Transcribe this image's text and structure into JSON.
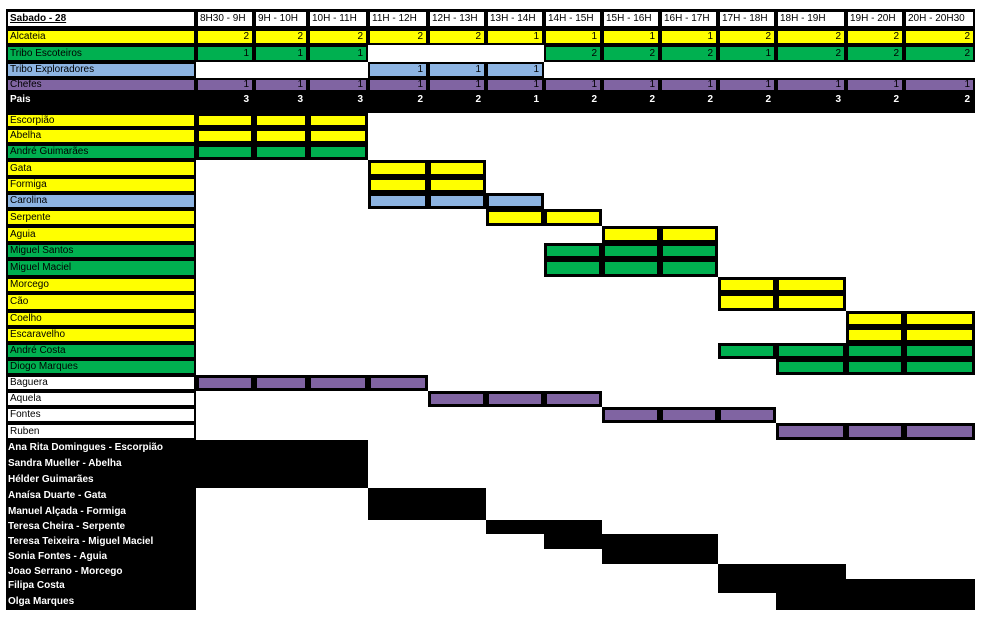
{
  "colors": {
    "yellow": "#ffff00",
    "green": "#00b050",
    "blue": "#8db4e2",
    "purple": "#8064a2",
    "black": "#000000",
    "white": "#ffffff"
  },
  "sheet_title": "Sabado - 28",
  "time_slots": [
    "8H30 - 9H",
    "9H - 10H",
    "10H - 11H",
    "11H - 12H",
    "12H - 13H",
    "13H - 14H",
    "14H - 15H",
    "15H - 16H",
    "16H - 17H",
    "17H - 18H",
    "18H - 19H",
    "19H - 20H",
    "20H - 20H30"
  ],
  "summary_rows": [
    {
      "label": "Alcateia",
      "color": "yellow",
      "values": [
        "2",
        "2",
        "2",
        "2",
        "2",
        "1",
        "1",
        "1",
        "1",
        "2",
        "2",
        "2",
        "2"
      ]
    },
    {
      "label": "Tribo Escoteiros",
      "color": "green",
      "values": [
        "1",
        "1",
        "1",
        "",
        "",
        "",
        "2",
        "2",
        "2",
        "1",
        "2",
        "2",
        "2"
      ]
    },
    {
      "label": "Tribo Exploradores",
      "color": "blue",
      "values": [
        "",
        "",
        "",
        "1",
        "1",
        "1",
        "",
        "",
        "",
        "",
        "",
        "",
        ""
      ]
    },
    {
      "label": "Chefes",
      "color": "purple",
      "values": [
        "1",
        "1",
        "1",
        "1",
        "1",
        "1",
        "1",
        "1",
        "1",
        "1",
        "1",
        "1",
        "1"
      ]
    },
    {
      "label": "Pais",
      "color": "black",
      "values": [
        "3",
        "3",
        "3",
        "2",
        "2",
        "1",
        "2",
        "2",
        "2",
        "2",
        "3",
        "2",
        "2"
      ]
    }
  ],
  "assignments": [
    {
      "label": "Escorpião",
      "color": "yellow",
      "slots": [
        0,
        1,
        2
      ]
    },
    {
      "label": "Abelha",
      "color": "yellow",
      "slots": [
        0,
        1,
        2
      ]
    },
    {
      "label": "André Guimarães",
      "color": "green",
      "slots": [
        0,
        1,
        2
      ]
    },
    {
      "label": "Gata",
      "color": "yellow",
      "slots": [
        3,
        4
      ]
    },
    {
      "label": "Formiga",
      "color": "yellow",
      "slots": [
        3,
        4
      ]
    },
    {
      "label": "Carolina",
      "color": "blue",
      "slots": [
        3,
        4,
        5
      ]
    },
    {
      "label": "Serpente",
      "color": "yellow",
      "slots": [
        5,
        6
      ]
    },
    {
      "label": "Aguia",
      "color": "yellow",
      "slots": [
        7,
        8
      ]
    },
    {
      "label": "Miguel Santos",
      "color": "green",
      "slots": [
        6,
        7,
        8
      ]
    },
    {
      "label": "Miguel Maciel",
      "color": "green",
      "slots": [
        6,
        7,
        8
      ]
    },
    {
      "label": "Morcego",
      "color": "yellow",
      "slots": [
        9,
        10
      ]
    },
    {
      "label": "Cão",
      "color": "yellow",
      "slots": [
        9,
        10
      ]
    },
    {
      "label": "Coelho",
      "color": "yellow",
      "slots": [
        11,
        12
      ]
    },
    {
      "label": "Escaravelho",
      "color": "yellow",
      "slots": [
        11,
        12
      ]
    },
    {
      "label": "André Costa",
      "color": "green",
      "slots": [
        9,
        10,
        11,
        12
      ]
    },
    {
      "label": "Diogo Marques",
      "color": "green",
      "slots": [
        10,
        11,
        12
      ]
    },
    {
      "label": "Baguera",
      "color": "purple",
      "slots": [
        0,
        1,
        2,
        3
      ]
    },
    {
      "label": "Aquela",
      "color": "purple",
      "slots": [
        4,
        5,
        6
      ]
    },
    {
      "label": "Fontes",
      "color": "purple",
      "slots": [
        7,
        8,
        9
      ]
    },
    {
      "label": "Ruben",
      "color": "purple",
      "slots": [
        10,
        11,
        12
      ]
    }
  ],
  "parents": [
    {
      "label": "Ana Rita Domingues - Escorpião",
      "slots": [
        0,
        1,
        2
      ]
    },
    {
      "label": "Sandra Mueller - Abelha",
      "slots": [
        0,
        1,
        2
      ]
    },
    {
      "label": "Hélder Guimarães",
      "slots": [
        0,
        1,
        2
      ]
    },
    {
      "label": "Anaísa Duarte - Gata",
      "slots": [
        3,
        4
      ]
    },
    {
      "label": "Manuel Alçada - Formiga",
      "slots": [
        3,
        4
      ]
    },
    {
      "label": "Teresa Cheira - Serpente",
      "slots": [
        5,
        6
      ]
    },
    {
      "label": "Teresa Teixeira - Miguel Maciel",
      "slots": [
        6,
        7,
        8
      ]
    },
    {
      "label": "Sonia Fontes - Aguia",
      "slots": [
        7,
        8
      ]
    },
    {
      "label": "Joao Serrano - Morcego",
      "slots": [
        9,
        10
      ]
    },
    {
      "label": "Filipa Costa",
      "slots": [
        9,
        10,
        11,
        12
      ]
    },
    {
      "label": "Olga Marques",
      "slots": [
        10,
        11,
        12
      ]
    }
  ]
}
